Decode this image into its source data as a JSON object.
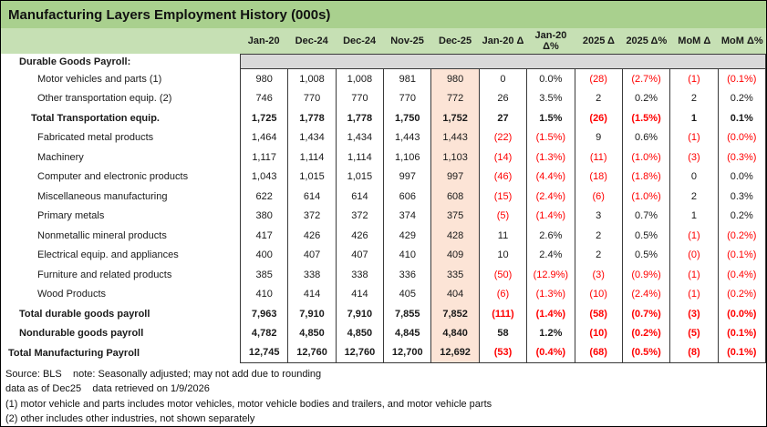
{
  "title": "Manufacturing Layers Employment History (000s)",
  "colors": {
    "title_bg": "#A9D08E",
    "header_bg": "#C6E0B4",
    "section_band_bg": "#D9D9D9",
    "highlight_column_bg": "#FCE4D6",
    "negative_text": "#FF0000"
  },
  "chart_data": {
    "type": "table",
    "title": "Manufacturing Layers Employment History (000s)",
    "highlight_column": "Dec-25",
    "highlight_column_index": 4,
    "columns": [
      "Jan-20",
      "Dec-24",
      "Dec-24",
      "Nov-25",
      "Dec-25",
      "Jan-20 Δ",
      "Jan-20 Δ%",
      "2025 Δ",
      "2025 Δ%",
      "MoM Δ",
      "MoM Δ%"
    ],
    "rows": [
      {
        "label": "Durable Goods Payroll:",
        "bold": true,
        "indent": 1,
        "values": null
      },
      {
        "label": "Motor vehicles and parts (1)",
        "bold": false,
        "indent": 3,
        "values": [
          "980",
          "1,008",
          "1,008",
          "981",
          "980",
          "0",
          "0.0%",
          "(28)",
          "(2.7%)",
          "(1)",
          "(0.1%)"
        ]
      },
      {
        "label": "Other transportation equip. (2)",
        "bold": false,
        "indent": 3,
        "values": [
          "746",
          "770",
          "770",
          "770",
          "772",
          "26",
          "3.5%",
          "2",
          "0.2%",
          "2",
          "0.2%"
        ]
      },
      {
        "label": "Total Transportation equip.",
        "bold": true,
        "indent": 2,
        "values": [
          "1,725",
          "1,778",
          "1,778",
          "1,750",
          "1,752",
          "27",
          "1.5%",
          "(26)",
          "(1.5%)",
          "1",
          "0.1%"
        ]
      },
      {
        "label": "Fabricated metal products",
        "bold": false,
        "indent": 3,
        "values": [
          "1,464",
          "1,434",
          "1,434",
          "1,443",
          "1,443",
          "(22)",
          "(1.5%)",
          "9",
          "0.6%",
          "(1)",
          "(0.0%)"
        ]
      },
      {
        "label": "Machinery",
        "bold": false,
        "indent": 3,
        "values": [
          "1,117",
          "1,114",
          "1,114",
          "1,106",
          "1,103",
          "(14)",
          "(1.3%)",
          "(11)",
          "(1.0%)",
          "(3)",
          "(0.3%)"
        ]
      },
      {
        "label": "Computer and electronic products",
        "bold": false,
        "indent": 3,
        "values": [
          "1,043",
          "1,015",
          "1,015",
          "997",
          "997",
          "(46)",
          "(4.4%)",
          "(18)",
          "(1.8%)",
          "0",
          "0.0%"
        ]
      },
      {
        "label": "Miscellaneous manufacturing",
        "bold": false,
        "indent": 3,
        "values": [
          "622",
          "614",
          "614",
          "606",
          "608",
          "(15)",
          "(2.4%)",
          "(6)",
          "(1.0%)",
          "2",
          "0.3%"
        ]
      },
      {
        "label": "Primary metals",
        "bold": false,
        "indent": 3,
        "values": [
          "380",
          "372",
          "372",
          "374",
          "375",
          "(5)",
          "(1.4%)",
          "3",
          "0.7%",
          "1",
          "0.2%"
        ]
      },
      {
        "label": "Nonmetallic mineral products",
        "bold": false,
        "indent": 3,
        "values": [
          "417",
          "426",
          "426",
          "429",
          "428",
          "11",
          "2.6%",
          "2",
          "0.5%",
          "(1)",
          "(0.2%)"
        ]
      },
      {
        "label": "Electrical equip. and appliances",
        "bold": false,
        "indent": 3,
        "values": [
          "400",
          "407",
          "407",
          "410",
          "409",
          "10",
          "2.4%",
          "2",
          "0.5%",
          "(0)",
          "(0.1%)"
        ]
      },
      {
        "label": "Furniture and related products",
        "bold": false,
        "indent": 3,
        "values": [
          "385",
          "338",
          "338",
          "336",
          "335",
          "(50)",
          "(12.9%)",
          "(3)",
          "(0.9%)",
          "(1)",
          "(0.4%)"
        ]
      },
      {
        "label": "Wood Products",
        "bold": false,
        "indent": 3,
        "values": [
          "410",
          "414",
          "414",
          "405",
          "404",
          "(6)",
          "(1.3%)",
          "(10)",
          "(2.4%)",
          "(1)",
          "(0.2%)"
        ]
      },
      {
        "label": "Total durable goods payroll",
        "bold": true,
        "indent": 1,
        "values": [
          "7,963",
          "7,910",
          "7,910",
          "7,855",
          "7,852",
          "(111)",
          "(1.4%)",
          "(58)",
          "(0.7%)",
          "(3)",
          "(0.0%)"
        ]
      },
      {
        "label": "Nondurable goods payroll",
        "bold": true,
        "indent": 1,
        "values": [
          "4,782",
          "4,850",
          "4,850",
          "4,845",
          "4,840",
          "58",
          "1.2%",
          "(10)",
          "(0.2%)",
          "(5)",
          "(0.1%)"
        ]
      },
      {
        "label": "Total Manufacturing Payroll",
        "bold": true,
        "indent": 0,
        "values": [
          "12,745",
          "12,760",
          "12,760",
          "12,700",
          "12,692",
          "(53)",
          "(0.4%)",
          "(68)",
          "(0.5%)",
          "(8)",
          "(0.1%)"
        ]
      }
    ]
  },
  "footnotes": [
    "Source: BLS    note: Seasonally adjusted; may not add due to rounding",
    "data as of Dec25    data retrieved on 1/9/2026",
    "(1) motor vehicle and parts includes motor vehicles, motor vehicle bodies and trailers, and motor vehicle parts",
    "(2) other includes other industries, not shown separately"
  ]
}
